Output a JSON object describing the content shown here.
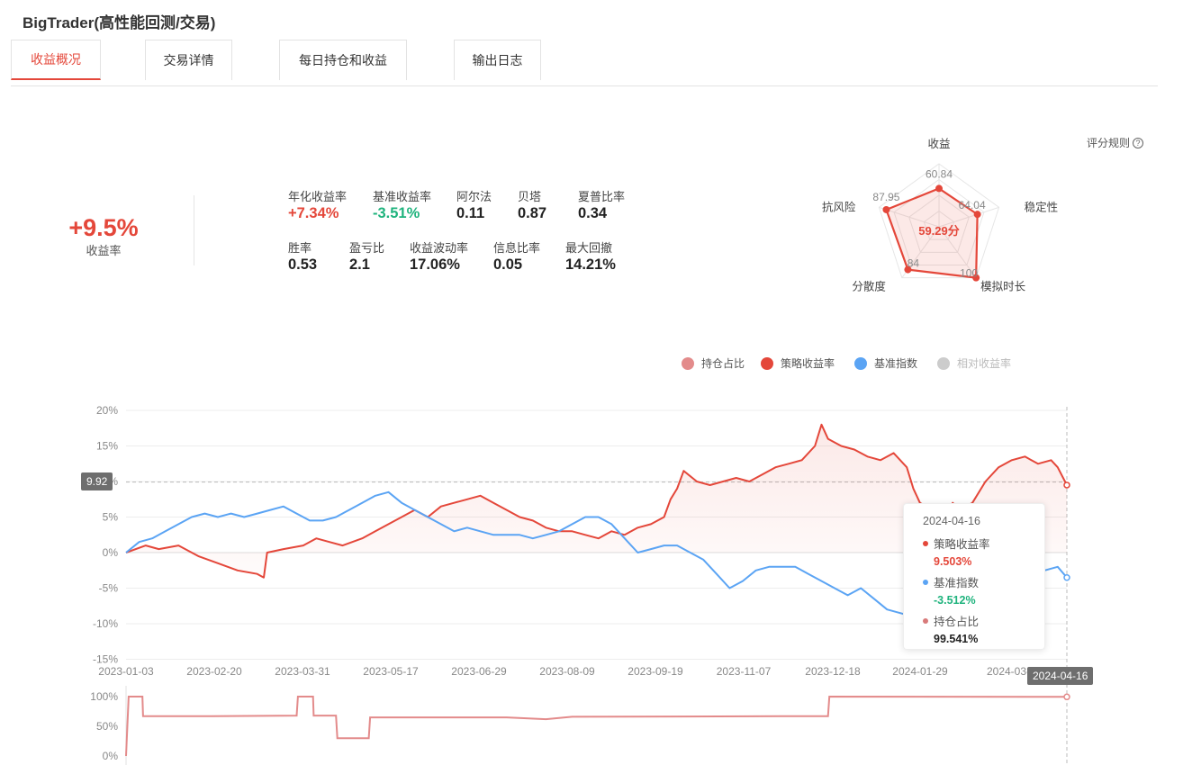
{
  "app": {
    "title": "BigTrader(高性能回测/交易)"
  },
  "tabs": [
    {
      "label": "收益概况",
      "active": true
    },
    {
      "label": "交易详情",
      "active": false
    },
    {
      "label": "每日持仓和收益",
      "active": false
    },
    {
      "label": "输出日志",
      "active": false
    }
  ],
  "summary": {
    "return_value": "+9.5%",
    "return_label": "收益率"
  },
  "metrics": [
    {
      "label": "年化收益率",
      "value": "+7.34%",
      "tone": "red"
    },
    {
      "label": "基准收益率",
      "value": "-3.51%",
      "tone": "green"
    },
    {
      "label": "阿尔法",
      "value": "0.11",
      "tone": ""
    },
    {
      "label": "贝塔",
      "value": "0.87",
      "tone": ""
    },
    {
      "label": "夏普比率",
      "value": "0.34",
      "tone": ""
    },
    {
      "label": "胜率",
      "value": "0.53",
      "tone": ""
    },
    {
      "label": "盈亏比",
      "value": "2.1",
      "tone": ""
    },
    {
      "label": "收益波动率",
      "value": "17.06%",
      "tone": ""
    },
    {
      "label": "信息比率",
      "value": "0.05",
      "tone": ""
    },
    {
      "label": "最大回撤",
      "value": "14.21%",
      "tone": ""
    }
  ],
  "score": {
    "rules_label": "评分规则",
    "rules_icon": "question-circle-icon",
    "total_label": "59.29分",
    "axes": [
      {
        "name": "收益",
        "value": 60.84,
        "value_label": "60.84"
      },
      {
        "name": "稳定性",
        "value": 64.04,
        "value_label": "64.04"
      },
      {
        "name": "模拟时长",
        "value": 100,
        "value_label": "100"
      },
      {
        "name": "分散度",
        "value": 84,
        "value_label": "84"
      },
      {
        "name": "抗风险",
        "value": 87.95,
        "value_label": "87.95"
      }
    ],
    "max": 100,
    "color": "#e4473a"
  },
  "legend": [
    {
      "label": "持仓占比",
      "color": "#e38b8b",
      "active": true
    },
    {
      "label": "策略收益率",
      "color": "#e4473a",
      "active": true
    },
    {
      "label": "基准指数",
      "color": "#5ba4f4",
      "active": true
    },
    {
      "label": "相对收益率",
      "color": "#cccccc",
      "active": false
    }
  ],
  "chart_data": [
    {
      "type": "line",
      "x_ticks": [
        "2023-01-03",
        "2023-02-20",
        "2023-03-31",
        "2023-05-17",
        "2023-06-29",
        "2023-08-09",
        "2023-09-19",
        "2023-11-07",
        "2023-12-18",
        "2024-01-29",
        "2024-03-"
      ],
      "y_ticks": [
        "20%",
        "15%",
        "10%",
        "5%",
        "0%",
        "-5%",
        "-10%",
        "-15%"
      ],
      "ylim": [
        -15,
        20
      ],
      "x_range": [
        "2023-01-03",
        "2024-04-16"
      ],
      "series": [
        {
          "name": "策略收益率",
          "color": "#e4473a",
          "points": [
            [
              0,
              0
            ],
            [
              3,
              1
            ],
            [
              5,
              0.5
            ],
            [
              8,
              1
            ],
            [
              11,
              -0.5
            ],
            [
              14,
              -1.5
            ],
            [
              17,
              -2.5
            ],
            [
              20,
              -3
            ],
            [
              21,
              -3.5
            ],
            [
              21.5,
              0
            ],
            [
              24,
              0.5
            ],
            [
              27,
              1
            ],
            [
              29,
              2
            ],
            [
              31,
              1.5
            ],
            [
              33,
              1
            ],
            [
              36,
              2
            ],
            [
              38,
              3
            ],
            [
              40,
              4
            ],
            [
              42,
              5
            ],
            [
              44,
              6
            ],
            [
              46,
              5
            ],
            [
              48,
              6.5
            ],
            [
              50,
              7
            ],
            [
              52,
              7.5
            ],
            [
              54,
              8
            ],
            [
              56,
              7
            ],
            [
              58,
              6
            ],
            [
              60,
              5
            ],
            [
              62,
              4.5
            ],
            [
              64,
              3.5
            ],
            [
              66,
              3
            ],
            [
              68,
              3
            ],
            [
              70,
              2.5
            ],
            [
              72,
              2
            ],
            [
              74,
              3
            ],
            [
              76,
              2.5
            ],
            [
              78,
              3.5
            ],
            [
              80,
              4
            ],
            [
              82,
              5
            ],
            [
              83,
              7.5
            ],
            [
              84,
              9
            ],
            [
              85,
              11.5
            ],
            [
              87,
              10
            ],
            [
              89,
              9.5
            ],
            [
              91,
              10
            ],
            [
              93,
              10.5
            ],
            [
              95,
              10
            ],
            [
              97,
              11
            ],
            [
              99,
              12
            ],
            [
              101,
              12.5
            ],
            [
              103,
              13
            ],
            [
              105,
              15
            ],
            [
              106,
              18
            ],
            [
              107,
              16
            ],
            [
              109,
              15
            ],
            [
              111,
              14.5
            ],
            [
              113,
              13.5
            ],
            [
              115,
              13
            ],
            [
              117,
              14
            ],
            [
              119,
              12
            ],
            [
              120,
              9
            ],
            [
              121,
              7
            ],
            [
              123,
              6
            ],
            [
              124,
              5
            ],
            [
              125,
              4
            ],
            [
              126,
              7
            ],
            [
              127,
              6
            ],
            [
              129,
              7
            ],
            [
              131,
              10
            ],
            [
              133,
              12
            ],
            [
              135,
              13
            ],
            [
              137,
              13.5
            ],
            [
              139,
              12.5
            ],
            [
              141,
              13
            ],
            [
              142,
              12
            ],
            [
              143.4,
              9.5
            ]
          ]
        },
        {
          "name": "基准指数",
          "color": "#5ba4f4",
          "points": [
            [
              0,
              0
            ],
            [
              2,
              1.5
            ],
            [
              4,
              2
            ],
            [
              6,
              3
            ],
            [
              8,
              4
            ],
            [
              10,
              5
            ],
            [
              12,
              5.5
            ],
            [
              14,
              5
            ],
            [
              16,
              5.5
            ],
            [
              18,
              5
            ],
            [
              20,
              5.5
            ],
            [
              22,
              6
            ],
            [
              24,
              6.5
            ],
            [
              26,
              5.5
            ],
            [
              28,
              4.5
            ],
            [
              30,
              4.5
            ],
            [
              32,
              5
            ],
            [
              34,
              6
            ],
            [
              36,
              7
            ],
            [
              38,
              8
            ],
            [
              40,
              8.5
            ],
            [
              42,
              7
            ],
            [
              44,
              6
            ],
            [
              46,
              5
            ],
            [
              48,
              4
            ],
            [
              50,
              3
            ],
            [
              52,
              3.5
            ],
            [
              54,
              3
            ],
            [
              56,
              2.5
            ],
            [
              58,
              2.5
            ],
            [
              60,
              2.5
            ],
            [
              62,
              2
            ],
            [
              64,
              2.5
            ],
            [
              66,
              3
            ],
            [
              68,
              4
            ],
            [
              70,
              5
            ],
            [
              72,
              5
            ],
            [
              74,
              4
            ],
            [
              76,
              2
            ],
            [
              78,
              0
            ],
            [
              80,
              0.5
            ],
            [
              82,
              1
            ],
            [
              84,
              1
            ],
            [
              86,
              0
            ],
            [
              88,
              -1
            ],
            [
              90,
              -3
            ],
            [
              92,
              -5
            ],
            [
              94,
              -4
            ],
            [
              96,
              -2.5
            ],
            [
              98,
              -2
            ],
            [
              100,
              -2
            ],
            [
              102,
              -2
            ],
            [
              104,
              -3
            ],
            [
              106,
              -4
            ],
            [
              108,
              -5
            ],
            [
              110,
              -6
            ],
            [
              112,
              -5
            ],
            [
              114,
              -6.5
            ],
            [
              116,
              -8
            ],
            [
              118,
              -8.5
            ],
            [
              120,
              -9
            ],
            [
              121,
              -10
            ],
            [
              122,
              -9
            ],
            [
              124,
              -8
            ],
            [
              126,
              -6.5
            ],
            [
              128,
              -5
            ],
            [
              130,
              -3.5
            ],
            [
              132,
              -3
            ],
            [
              134,
              -2.5
            ],
            [
              136,
              -2.5
            ],
            [
              138,
              -2
            ],
            [
              140,
              -2.5
            ],
            [
              142,
              -2
            ],
            [
              143.4,
              -3.512
            ]
          ]
        }
      ],
      "crosshair_y_label": "9.92",
      "crosshair_x_label": "2024-04-16"
    },
    {
      "type": "line",
      "name": "持仓占比",
      "color": "#e38b8b",
      "y_ticks": [
        "100%",
        "50%",
        "0%"
      ],
      "ylim": [
        0,
        100
      ],
      "points": [
        [
          0,
          0
        ],
        [
          0.4,
          100
        ],
        [
          2.5,
          100
        ],
        [
          2.6,
          67
        ],
        [
          13,
          67
        ],
        [
          26,
          68
        ],
        [
          26.2,
          100
        ],
        [
          28.5,
          100
        ],
        [
          28.6,
          68
        ],
        [
          32,
          68
        ],
        [
          32.2,
          30
        ],
        [
          37,
          30
        ],
        [
          37.2,
          65
        ],
        [
          58,
          65
        ],
        [
          64,
          62
        ],
        [
          68,
          66
        ],
        [
          100,
          67
        ],
        [
          107,
          67
        ],
        [
          107.2,
          100
        ],
        [
          143.4,
          99.541
        ]
      ]
    }
  ],
  "tooltip": {
    "date": "2024-04-16",
    "rows": [
      {
        "label": "策略收益率",
        "value": "9.503%",
        "color": "#e4473a"
      },
      {
        "label": "基准指数",
        "value": "-3.512%",
        "color": "#5ba4f4"
      },
      {
        "label": "持仓占比",
        "value": "99.541%",
        "color": "#d87a7a"
      }
    ]
  }
}
